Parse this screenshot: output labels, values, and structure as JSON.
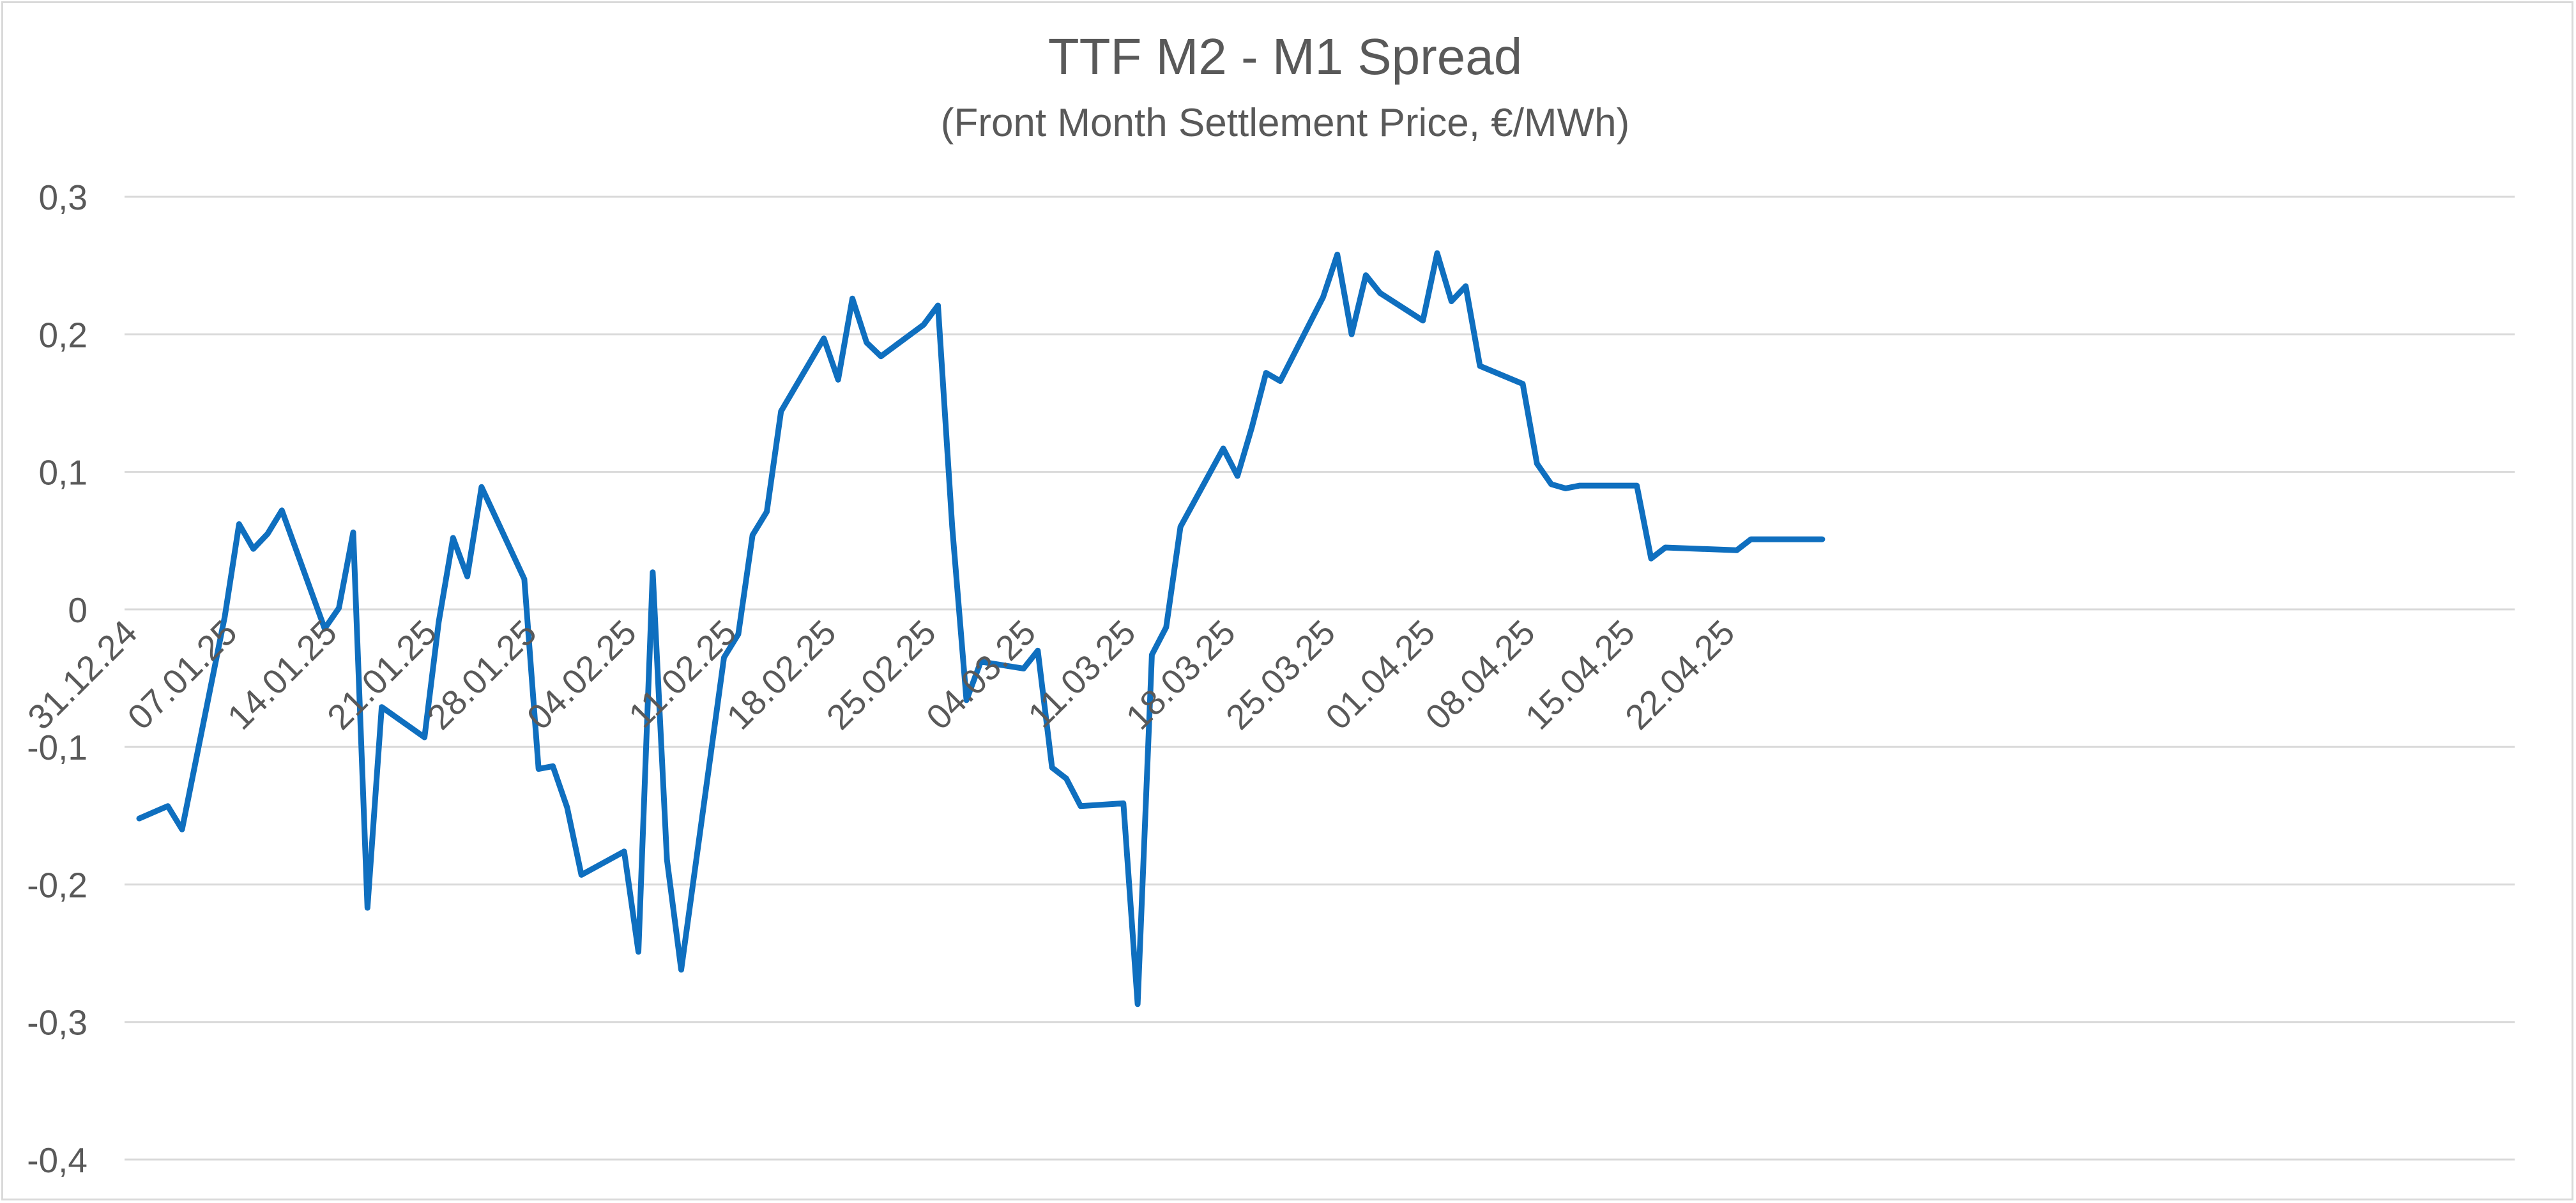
{
  "chart_data": {
    "type": "line",
    "title": "TTF M2 - M1 Spread",
    "subtitle": "(Front Month Settlement Price, €/MWh)",
    "xlabel": "",
    "ylabel": "",
    "ylim": [
      -0.4,
      0.3
    ],
    "y_ticks": [
      0.3,
      0.2,
      0.1,
      0,
      -0.1,
      -0.2,
      -0.3,
      -0.4
    ],
    "y_tick_labels": [
      "0,3",
      "0,2",
      "0,1",
      "0",
      "-0,1",
      "-0,2",
      "-0,3",
      "-0,4"
    ],
    "x_tick_labels": [
      "31.12.24",
      "07.01.25",
      "14.01.25",
      "21.01.25",
      "28.01.25",
      "04.02.25",
      "11.02.25",
      "18.02.25",
      "25.02.25",
      "04.03.25",
      "11.03.25",
      "18.03.25",
      "25.03.25",
      "01.04.25",
      "08.04.25",
      "15.04.25",
      "22.04.25"
    ],
    "grid": true,
    "legend": "none",
    "colors": {
      "line": "#0f6fbf",
      "grid": "#d9d9d9",
      "text": "#595959"
    },
    "series": [
      {
        "x": [
          "31.12.24",
          "02.01.25",
          "03.01.25",
          "06.01.25",
          "07.01.25",
          "08.01.25",
          "09.01.25",
          "10.01.25",
          "13.01.25",
          "14.01.25",
          "15.01.25",
          "16.01.25",
          "17.01.25",
          "20.01.25",
          "21.01.25",
          "22.01.25",
          "23.01.25",
          "24.01.25",
          "27.01.25",
          "28.01.25",
          "29.01.25",
          "30.01.25",
          "31.01.25",
          "03.02.25",
          "04.02.25",
          "05.02.25",
          "06.02.25",
          "07.02.25",
          "10.02.25",
          "11.02.25",
          "12.02.25",
          "13.02.25",
          "14.02.25",
          "17.02.25",
          "18.02.25",
          "19.02.25",
          "20.02.25",
          "21.02.25",
          "24.02.25",
          "25.02.25",
          "26.02.25",
          "27.02.25",
          "28.02.25",
          "03.03.25",
          "04.03.25",
          "05.03.25",
          "06.03.25",
          "07.03.25",
          "10.03.25",
          "11.03.25",
          "12.03.25",
          "13.03.25",
          "14.03.25",
          "17.03.25",
          "18.03.25",
          "19.03.25",
          "20.03.25",
          "21.03.25",
          "24.03.25",
          "25.03.25",
          "26.03.25",
          "27.03.25",
          "28.03.25",
          "31.03.25",
          "01.04.25",
          "02.04.25",
          "03.04.25",
          "04.04.25",
          "07.04.25",
          "08.04.25",
          "09.04.25",
          "10.04.25",
          "11.04.25",
          "14.04.25",
          "15.04.25",
          "16.04.25",
          "17.04.25",
          "22.04.25",
          "23.04.25",
          "24.04.25",
          "25.04.25",
          "28.04.25"
        ],
        "values": [
          -0.152,
          -0.143,
          -0.16,
          -0.005,
          0.062,
          0.044,
          0.055,
          0.072,
          -0.014,
          0.001,
          0.056,
          -0.217,
          -0.071,
          -0.093,
          -0.009,
          0.052,
          0.024,
          0.089,
          0.022,
          -0.116,
          -0.114,
          -0.144,
          -0.193,
          -0.176,
          -0.249,
          0.027,
          -0.182,
          -0.262,
          -0.035,
          -0.018,
          0.054,
          0.071,
          0.144,
          0.197,
          0.167,
          0.226,
          0.194,
          0.184,
          0.207,
          0.221,
          0.06,
          -0.066,
          -0.038,
          -0.043,
          -0.03,
          -0.115,
          -0.123,
          -0.143,
          -0.141,
          -0.287,
          -0.033,
          -0.013,
          0.06,
          0.117,
          0.097,
          0.132,
          0.172,
          0.166,
          0.227,
          0.258,
          0.2,
          0.243,
          0.23,
          0.21,
          0.259,
          0.224,
          0.235,
          0.177,
          0.164,
          0.106,
          0.091,
          0.088,
          0.09,
          0.09,
          0.09,
          0.037,
          0.045,
          0.043,
          0.051,
          0.051,
          0.051,
          0.051
        ]
      }
    ]
  }
}
